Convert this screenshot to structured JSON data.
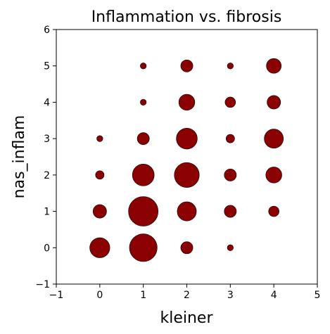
{
  "chart_data": {
    "type": "scatter",
    "title": "Inflammation vs. fibrosis",
    "xlabel": "kleiner",
    "ylabel": "nas_inflam",
    "xlim": [
      -1,
      5
    ],
    "ylim": [
      -1,
      6
    ],
    "xticks": [
      "−1",
      "0",
      "1",
      "2",
      "3",
      "4",
      "5"
    ],
    "yticks": [
      "−1",
      "0",
      "1",
      "2",
      "3",
      "4",
      "5",
      "6"
    ],
    "grid": false,
    "marker_color": "#8b0000",
    "size_encoding": "marker area proportional to count",
    "points": [
      {
        "x": 0,
        "y": 0,
        "count": 11
      },
      {
        "x": 0,
        "y": 1,
        "count": 5
      },
      {
        "x": 0,
        "y": 2,
        "count": 2
      },
      {
        "x": 0,
        "y": 3,
        "count": 1
      },
      {
        "x": 1,
        "y": 0,
        "count": 21
      },
      {
        "x": 1,
        "y": 1,
        "count": 24
      },
      {
        "x": 1,
        "y": 2,
        "count": 13
      },
      {
        "x": 1,
        "y": 3,
        "count": 4
      },
      {
        "x": 1,
        "y": 4,
        "count": 1
      },
      {
        "x": 1,
        "y": 5,
        "count": 1
      },
      {
        "x": 2,
        "y": 0,
        "count": 4
      },
      {
        "x": 2,
        "y": 1,
        "count": 10
      },
      {
        "x": 2,
        "y": 2,
        "count": 17
      },
      {
        "x": 2,
        "y": 3,
        "count": 12
      },
      {
        "x": 2,
        "y": 4,
        "count": 7
      },
      {
        "x": 2,
        "y": 5,
        "count": 4
      },
      {
        "x": 3,
        "y": 0,
        "count": 1
      },
      {
        "x": 3,
        "y": 1,
        "count": 4
      },
      {
        "x": 3,
        "y": 2,
        "count": 4
      },
      {
        "x": 3,
        "y": 3,
        "count": 2
      },
      {
        "x": 3,
        "y": 4,
        "count": 3
      },
      {
        "x": 3,
        "y": 5,
        "count": 1
      },
      {
        "x": 4,
        "y": 1,
        "count": 3
      },
      {
        "x": 4,
        "y": 2,
        "count": 7
      },
      {
        "x": 4,
        "y": 3,
        "count": 10
      },
      {
        "x": 4,
        "y": 4,
        "count": 5
      },
      {
        "x": 4,
        "y": 5,
        "count": 6
      }
    ]
  }
}
